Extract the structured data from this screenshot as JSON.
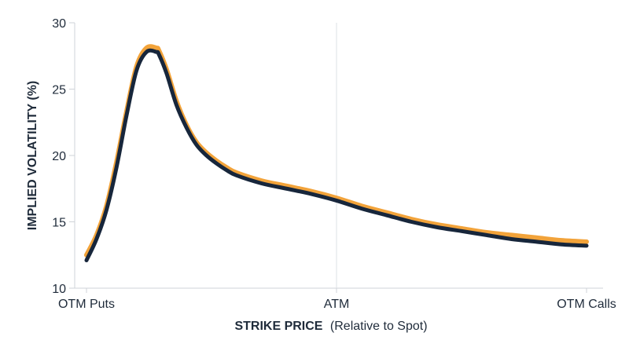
{
  "chart_data": {
    "type": "line",
    "xlabel_bold": "STRIKE PRICE",
    "xlabel_rest": "(Relative to Spot)",
    "ylabel": "IMPLIED VOLATILITY (%)",
    "x_tick_labels": [
      "OTM Puts",
      "ATM",
      "OTM Calls"
    ],
    "x_tick_positions": [
      0,
      0.5,
      1
    ],
    "yticks": [
      10,
      15,
      20,
      25,
      30
    ],
    "ylim": [
      10,
      30
    ],
    "xlim": [
      0,
      1
    ],
    "grid": "x at ATM only",
    "series": [
      {
        "color": "#f2a33a",
        "x": [
          0,
          0.02,
          0.04,
          0.06,
          0.08,
          0.1,
          0.12,
          0.14,
          0.145,
          0.16,
          0.18,
          0.2,
          0.22,
          0.24,
          0.26,
          0.28,
          0.3,
          0.35,
          0.4,
          0.45,
          0.5,
          0.55,
          0.6,
          0.65,
          0.7,
          0.75,
          0.8,
          0.85,
          0.9,
          0.95,
          1
        ],
        "values": [
          12.5,
          14.0,
          16.2,
          19.5,
          23.3,
          26.7,
          28.1,
          28.1,
          27.9,
          26.5,
          24.1,
          22.3,
          21.0,
          20.2,
          19.6,
          19.1,
          18.7,
          18.1,
          17.7,
          17.3,
          16.8,
          16.2,
          15.7,
          15.2,
          14.8,
          14.5,
          14.2,
          14.0,
          13.8,
          13.6,
          13.5
        ]
      },
      {
        "color": "#17263b",
        "x": [
          0,
          0.02,
          0.04,
          0.06,
          0.08,
          0.1,
          0.12,
          0.14,
          0.145,
          0.16,
          0.18,
          0.2,
          0.22,
          0.24,
          0.26,
          0.28,
          0.3,
          0.35,
          0.4,
          0.45,
          0.5,
          0.55,
          0.6,
          0.65,
          0.7,
          0.75,
          0.8,
          0.85,
          0.9,
          0.95,
          1
        ],
        "values": [
          12.1,
          13.7,
          15.9,
          19.1,
          23.0,
          26.4,
          27.8,
          27.8,
          27.6,
          26.2,
          23.8,
          22.1,
          20.8,
          20.0,
          19.4,
          18.9,
          18.5,
          17.9,
          17.5,
          17.1,
          16.6,
          16.0,
          15.5,
          15.0,
          14.6,
          14.3,
          14.0,
          13.7,
          13.5,
          13.3,
          13.2
        ]
      }
    ]
  }
}
